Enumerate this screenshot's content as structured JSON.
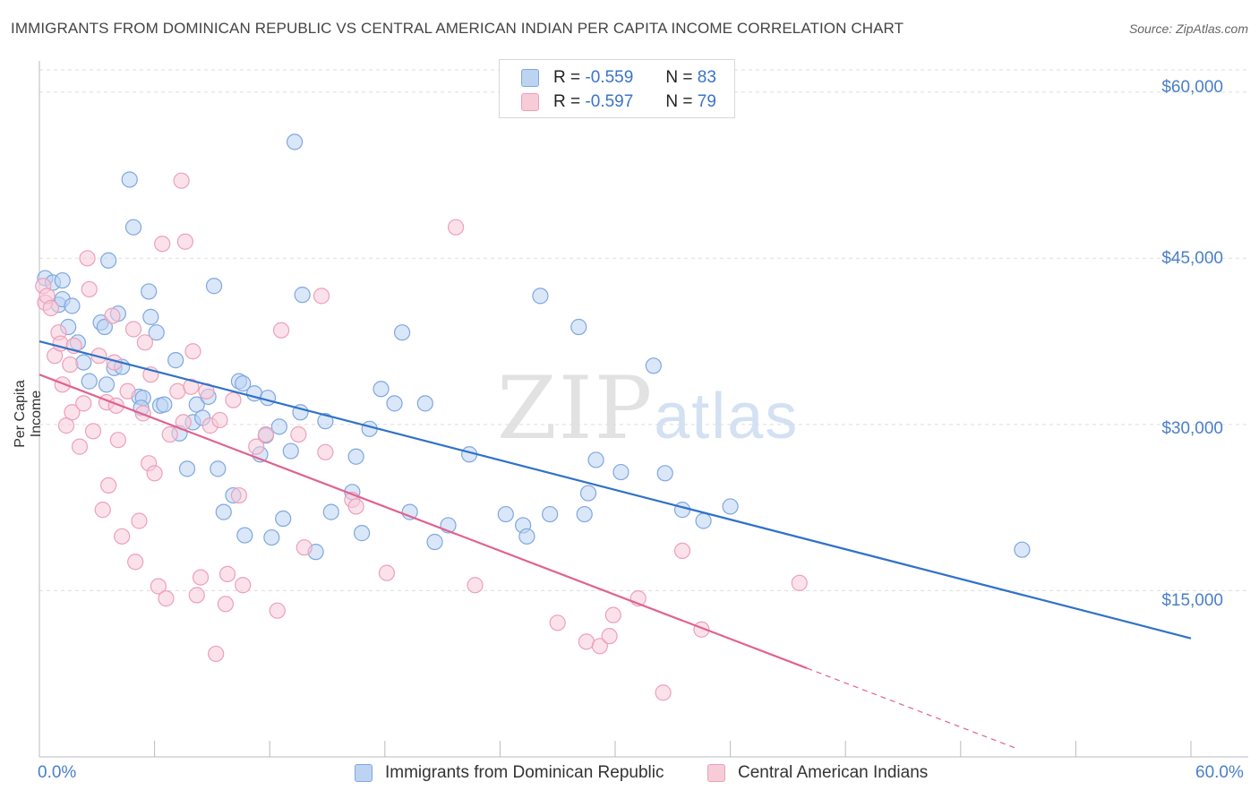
{
  "header": {
    "title": "IMMIGRANTS FROM DOMINICAN REPUBLIC VS CENTRAL AMERICAN INDIAN PER CAPITA INCOME CORRELATION CHART",
    "source": "Source: ZipAtlas.com"
  },
  "watermark": {
    "zip": "ZIP",
    "atlas": "atlas"
  },
  "stats": {
    "row1": {
      "r_label": "R =",
      "r_value": "-0.559",
      "n_label": "N =",
      "n_value": "83"
    },
    "row2": {
      "r_label": "R =",
      "r_value": "-0.597",
      "n_label": "N =",
      "n_value": "79"
    }
  },
  "legend": {
    "series1": "Immigrants from Dominican Republic",
    "series2": "Central American Indians"
  },
  "colors": {
    "blue_fill": "#bcd3f2",
    "blue_stroke": "#7fa7e0",
    "blue_line": "#2f72c9",
    "pink_fill": "#f8cbd9",
    "pink_stroke": "#eda0b8",
    "pink_line": "#e0628f",
    "grid": "#dddddd",
    "axis_label": "#4a7fc9"
  },
  "axes": {
    "y_title": "Per Capita Income",
    "y_ticks": [
      "$60,000",
      "$45,000",
      "$30,000",
      "$15,000"
    ],
    "x_min_label": "0.0%",
    "x_max_label": "60.0%"
  },
  "chart_data": {
    "type": "scatter",
    "title": "IMMIGRANTS FROM DOMINICAN REPUBLIC VS CENTRAL AMERICAN INDIAN PER CAPITA INCOME CORRELATION CHART",
    "xlabel": "",
    "ylabel": "Per Capita Income",
    "xlim": [
      0,
      60
    ],
    "ylim": [
      0,
      62000
    ],
    "y_ticks": [
      15000,
      30000,
      45000,
      60000
    ],
    "x_minor_ticks": [
      6,
      12,
      18,
      24,
      30,
      36,
      42,
      48,
      54,
      60
    ],
    "grid": true,
    "legend_position": "bottom",
    "series": [
      {
        "name": "Immigrants from Dominican Republic",
        "color": "#7fa7e0",
        "r": -0.559,
        "n": 83,
        "trend": {
          "x": [
            0,
            60
          ],
          "y": [
            37500,
            10700
          ]
        },
        "points": [
          [
            0.3,
            43.2
          ],
          [
            0.7,
            42.8
          ],
          [
            1.0,
            40.8
          ],
          [
            1.2,
            41.3
          ],
          [
            1.5,
            38.8
          ],
          [
            1.7,
            40.7
          ],
          [
            2.0,
            37.4
          ],
          [
            2.3,
            35.6
          ],
          [
            2.6,
            33.9
          ],
          [
            3.2,
            39.2
          ],
          [
            3.4,
            38.8
          ],
          [
            3.5,
            33.6
          ],
          [
            3.6,
            44.8
          ],
          [
            3.9,
            35.1
          ],
          [
            4.1,
            40.0
          ],
          [
            4.3,
            35.2
          ],
          [
            4.7,
            52.1
          ],
          [
            4.9,
            47.8
          ],
          [
            5.2,
            32.5
          ],
          [
            5.4,
            32.4
          ],
          [
            5.7,
            42.0
          ],
          [
            5.8,
            39.7
          ],
          [
            6.1,
            38.3
          ],
          [
            6.3,
            31.7
          ],
          [
            6.5,
            31.8
          ],
          [
            7.1,
            35.8
          ],
          [
            7.3,
            29.2
          ],
          [
            7.7,
            26.0
          ],
          [
            8.0,
            30.2
          ],
          [
            8.2,
            31.8
          ],
          [
            8.5,
            30.6
          ],
          [
            8.8,
            32.5
          ],
          [
            9.1,
            42.5
          ],
          [
            9.3,
            26.0
          ],
          [
            9.6,
            22.1
          ],
          [
            10.1,
            23.6
          ],
          [
            10.4,
            33.9
          ],
          [
            10.6,
            33.7
          ],
          [
            10.7,
            20.0
          ],
          [
            11.2,
            32.8
          ],
          [
            11.5,
            27.3
          ],
          [
            11.8,
            29.0
          ],
          [
            11.9,
            32.4
          ],
          [
            12.1,
            19.8
          ],
          [
            12.5,
            29.8
          ],
          [
            12.7,
            21.5
          ],
          [
            13.1,
            27.6
          ],
          [
            13.3,
            55.5
          ],
          [
            13.6,
            31.1
          ],
          [
            13.7,
            41.7
          ],
          [
            14.4,
            18.5
          ],
          [
            14.9,
            30.3
          ],
          [
            15.2,
            22.1
          ],
          [
            16.3,
            23.9
          ],
          [
            16.5,
            27.1
          ],
          [
            16.8,
            20.2
          ],
          [
            17.2,
            29.6
          ],
          [
            17.8,
            33.2
          ],
          [
            18.5,
            31.9
          ],
          [
            18.9,
            38.3
          ],
          [
            19.3,
            22.1
          ],
          [
            20.1,
            31.9
          ],
          [
            20.6,
            19.4
          ],
          [
            21.3,
            20.9
          ],
          [
            22.4,
            27.3
          ],
          [
            24.3,
            21.9
          ],
          [
            25.2,
            20.9
          ],
          [
            25.4,
            19.9
          ],
          [
            26.1,
            41.6
          ],
          [
            26.6,
            21.9
          ],
          [
            28.1,
            38.8
          ],
          [
            28.4,
            21.9
          ],
          [
            28.6,
            23.8
          ],
          [
            29.0,
            26.8
          ],
          [
            30.3,
            25.7
          ],
          [
            32.0,
            35.3
          ],
          [
            32.6,
            25.6
          ],
          [
            33.5,
            22.3
          ],
          [
            34.6,
            21.3
          ],
          [
            36.0,
            22.6
          ],
          [
            51.2,
            18.7
          ],
          [
            1.2,
            43.0
          ],
          [
            5.3,
            31.5
          ]
        ]
      },
      {
        "name": "Central American Indians",
        "color": "#eda0b8",
        "r": -0.597,
        "n": 79,
        "trend": {
          "x": [
            0,
            40
          ],
          "y": [
            34500,
            8000
          ]
        },
        "trend_dashed": {
          "x": [
            40,
            51
          ],
          "y": [
            8000,
            700
          ]
        },
        "points": [
          [
            0.2,
            42.5
          ],
          [
            0.3,
            41.0
          ],
          [
            0.4,
            41.6
          ],
          [
            0.6,
            40.5
          ],
          [
            0.8,
            36.2
          ],
          [
            1.0,
            38.3
          ],
          [
            1.1,
            37.3
          ],
          [
            1.2,
            33.6
          ],
          [
            1.4,
            29.9
          ],
          [
            1.6,
            35.4
          ],
          [
            1.7,
            31.1
          ],
          [
            1.8,
            37.1
          ],
          [
            2.1,
            28.0
          ],
          [
            2.3,
            31.9
          ],
          [
            2.5,
            45.0
          ],
          [
            2.6,
            42.2
          ],
          [
            2.8,
            29.4
          ],
          [
            3.1,
            36.2
          ],
          [
            3.3,
            22.3
          ],
          [
            3.5,
            32.0
          ],
          [
            3.6,
            24.5
          ],
          [
            3.8,
            39.8
          ],
          [
            3.9,
            35.6
          ],
          [
            4.0,
            31.7
          ],
          [
            4.1,
            28.6
          ],
          [
            4.3,
            19.9
          ],
          [
            4.6,
            33.0
          ],
          [
            4.9,
            38.6
          ],
          [
            5.0,
            17.6
          ],
          [
            5.2,
            21.3
          ],
          [
            5.4,
            31.0
          ],
          [
            5.5,
            37.4
          ],
          [
            5.7,
            26.5
          ],
          [
            6.0,
            25.6
          ],
          [
            6.2,
            15.4
          ],
          [
            6.4,
            46.3
          ],
          [
            6.6,
            14.3
          ],
          [
            6.8,
            29.1
          ],
          [
            7.2,
            33.0
          ],
          [
            7.4,
            52.0
          ],
          [
            7.6,
            46.5
          ],
          [
            7.9,
            33.4
          ],
          [
            8.0,
            36.6
          ],
          [
            8.2,
            14.6
          ],
          [
            8.4,
            16.2
          ],
          [
            8.7,
            33.0
          ],
          [
            8.9,
            29.9
          ],
          [
            9.2,
            9.3
          ],
          [
            9.4,
            30.4
          ],
          [
            9.7,
            13.8
          ],
          [
            9.8,
            16.5
          ],
          [
            10.1,
            32.2
          ],
          [
            10.4,
            23.6
          ],
          [
            10.6,
            15.5
          ],
          [
            11.3,
            28.0
          ],
          [
            11.8,
            29.1
          ],
          [
            12.4,
            13.2
          ],
          [
            12.6,
            38.5
          ],
          [
            13.5,
            29.1
          ],
          [
            13.8,
            18.9
          ],
          [
            14.7,
            41.6
          ],
          [
            14.9,
            27.5
          ],
          [
            16.3,
            23.2
          ],
          [
            16.5,
            22.6
          ],
          [
            18.1,
            16.6
          ],
          [
            21.7,
            47.8
          ],
          [
            22.7,
            15.5
          ],
          [
            27.0,
            12.1
          ],
          [
            28.5,
            10.4
          ],
          [
            29.2,
            10.0
          ],
          [
            29.7,
            10.9
          ],
          [
            29.9,
            12.8
          ],
          [
            31.2,
            14.3
          ],
          [
            32.5,
            5.8
          ],
          [
            33.5,
            18.6
          ],
          [
            34.5,
            11.5
          ],
          [
            39.6,
            15.7
          ],
          [
            7.5,
            30.2
          ],
          [
            5.8,
            34.5
          ]
        ]
      }
    ]
  }
}
